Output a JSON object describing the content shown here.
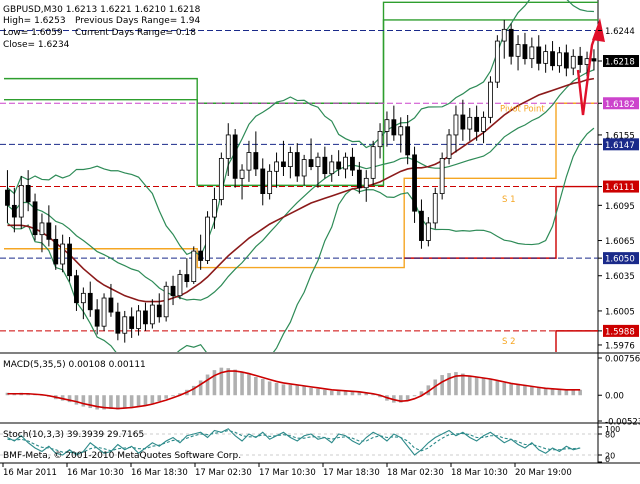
{
  "symbol_info": "GBPUSD,M30  1.6213 1.6221 1.6210 1.6218",
  "info_lines": [
    "High= 1.6253",
    "Low= 1.6059",
    "Close= 1.6234"
  ],
  "range_lines": [
    "Previous Days Range= 1.94",
    "Current Days Range= 0.18"
  ],
  "copyright": "BMF-Meta, © 2001-2010 MetaQuotes Software Corp.",
  "macd_label": "MACD(5,35,5) 0.00108 0.00111",
  "stoch_label": "Stoch(10,3,3) 39.3939 29.7165",
  "colors": {
    "candle": "#000000",
    "bollinger": "#2e8b57",
    "ma": "#8b1a1a",
    "pivot": "#f5a623",
    "resistance": "#2e9e2e",
    "support": "#cc0000",
    "macd_signal": "#cc0000",
    "macd_hist": "#b0b0b0",
    "stoch_main": "#2e8b8b",
    "stoch_signal": "#2e8b8b",
    "arrow": "#e0102a"
  },
  "chart_data": [
    {
      "type": "candlestick",
      "title": "GBPUSD,M30",
      "y_ticks": [
        "1.6244",
        "1.6218",
        "1.6182",
        "1.6155",
        "1.6147",
        "1.6111",
        "1.6095",
        "1.6065",
        "1.6050",
        "1.6035",
        "1.6005",
        "1.5988",
        "1.5976"
      ],
      "highlighted_levels": [
        {
          "label": "1.6244",
          "value": 1.6244,
          "color": "#ffffff",
          "bg": "#ffffff"
        },
        {
          "label": "1.6218",
          "value": 1.6218,
          "color": "#ffffff",
          "bg": "#000000"
        },
        {
          "label": "1.6182",
          "value": 1.6182,
          "color": "#ffffff",
          "bg": "#cc44cc"
        },
        {
          "label": "1.6147",
          "value": 1.6147,
          "color": "#ffffff",
          "bg": "#1a2a8a"
        },
        {
          "label": "1.6111",
          "value": 1.6111,
          "color": "#ffffff",
          "bg": "#cc0000"
        },
        {
          "label": "1.6050",
          "value": 1.605,
          "color": "#ffffff",
          "bg": "#1a2a8a"
        },
        {
          "label": "1.5988",
          "value": 1.5988,
          "color": "#ffffff",
          "bg": "#cc0000"
        }
      ],
      "level_labels": [
        "Pivot Point",
        "S 1",
        "S 2"
      ],
      "x_ticks": [
        "16 Mar 2011",
        "16 Mar 10:30",
        "16 Mar 18:30",
        "17 Mar 02:30",
        "17 Mar 10:30",
        "17 Mar 18:30",
        "18 Mar 02:30",
        "18 Mar 10:30",
        "20 Mar 19:00"
      ],
      "ylim": [
        1.597,
        1.627
      ],
      "candles": [
        [
          1.6108,
          1.6125,
          1.608,
          1.6095
        ],
        [
          1.6095,
          1.611,
          1.6072,
          1.6085
        ],
        [
          1.6085,
          1.612,
          1.6075,
          1.6112
        ],
        [
          1.6112,
          1.6125,
          1.609,
          1.6098
        ],
        [
          1.6098,
          1.6105,
          1.6065,
          1.607
        ],
        [
          1.607,
          1.6088,
          1.6055,
          1.608
        ],
        [
          1.608,
          1.6095,
          1.606,
          1.6066
        ],
        [
          1.6066,
          1.6078,
          1.604,
          1.6045
        ],
        [
          1.6045,
          1.607,
          1.6038,
          1.6062
        ],
        [
          1.6062,
          1.6068,
          1.603,
          1.6035
        ],
        [
          1.6035,
          1.604,
          1.6005,
          1.6012
        ],
        [
          1.6012,
          1.6025,
          1.5998,
          1.602
        ],
        [
          1.602,
          1.603,
          1.6,
          1.6006
        ],
        [
          1.6006,
          1.6015,
          1.5985,
          1.5992
        ],
        [
          1.5992,
          1.602,
          1.5988,
          1.6016
        ],
        [
          1.6016,
          1.6028,
          1.6,
          1.6004
        ],
        [
          1.6004,
          1.6012,
          1.598,
          1.5986
        ],
        [
          1.5986,
          1.6005,
          1.5978,
          1.6
        ],
        [
          1.6,
          1.6008,
          1.5982,
          1.599
        ],
        [
          1.599,
          1.601,
          1.5984,
          1.6005
        ],
        [
          1.6005,
          1.6012,
          1.5988,
          1.5994
        ],
        [
          1.5994,
          1.6015,
          1.599,
          1.601
        ],
        [
          1.601,
          1.602,
          1.5995,
          1.6
        ],
        [
          1.6,
          1.603,
          1.5996,
          1.6026
        ],
        [
          1.6026,
          1.6035,
          1.601,
          1.6018
        ],
        [
          1.6018,
          1.604,
          1.6015,
          1.6036
        ],
        [
          1.6036,
          1.605,
          1.6025,
          1.603
        ],
        [
          1.603,
          1.606,
          1.6028,
          1.6056
        ],
        [
          1.6056,
          1.607,
          1.604,
          1.6048
        ],
        [
          1.6048,
          1.609,
          1.6045,
          1.6085
        ],
        [
          1.6085,
          1.611,
          1.6075,
          1.61
        ],
        [
          1.61,
          1.614,
          1.6095,
          1.6135
        ],
        [
          1.6135,
          1.6165,
          1.612,
          1.6155
        ],
        [
          1.6155,
          1.616,
          1.611,
          1.6118
        ],
        [
          1.6118,
          1.613,
          1.61,
          1.6125
        ],
        [
          1.6125,
          1.615,
          1.6115,
          1.614
        ],
        [
          1.614,
          1.6158,
          1.612,
          1.6126
        ],
        [
          1.6126,
          1.6135,
          1.6095,
          1.6105
        ],
        [
          1.6105,
          1.613,
          1.61,
          1.6124
        ],
        [
          1.6124,
          1.614,
          1.611,
          1.6132
        ],
        [
          1.6132,
          1.615,
          1.612,
          1.6128
        ],
        [
          1.6128,
          1.6145,
          1.6118,
          1.614
        ],
        [
          1.614,
          1.6148,
          1.6115,
          1.612
        ],
        [
          1.612,
          1.6138,
          1.6112,
          1.6134
        ],
        [
          1.6134,
          1.6152,
          1.6125,
          1.6128
        ],
        [
          1.6128,
          1.614,
          1.611,
          1.6136
        ],
        [
          1.6136,
          1.6145,
          1.6118,
          1.6122
        ],
        [
          1.6122,
          1.6138,
          1.6115,
          1.6132
        ],
        [
          1.6132,
          1.6142,
          1.612,
          1.6126
        ],
        [
          1.6126,
          1.614,
          1.6118,
          1.6136
        ],
        [
          1.6136,
          1.6144,
          1.612,
          1.6125
        ],
        [
          1.6125,
          1.6132,
          1.6105,
          1.611
        ],
        [
          1.611,
          1.6125,
          1.6098,
          1.6118
        ],
        [
          1.6118,
          1.615,
          1.6112,
          1.6145
        ],
        [
          1.6145,
          1.6165,
          1.6135,
          1.6158
        ],
        [
          1.6158,
          1.6175,
          1.6145,
          1.6168
        ],
        [
          1.6168,
          1.618,
          1.615,
          1.6155
        ],
        [
          1.6155,
          1.617,
          1.614,
          1.6162
        ],
        [
          1.6162,
          1.6172,
          1.613,
          1.6138
        ],
        [
          1.6138,
          1.6145,
          1.608,
          1.609
        ],
        [
          1.609,
          1.61,
          1.6058,
          1.6065
        ],
        [
          1.6065,
          1.6085,
          1.606,
          1.608
        ],
        [
          1.608,
          1.611,
          1.6075,
          1.6105
        ],
        [
          1.6105,
          1.614,
          1.61,
          1.6135
        ],
        [
          1.6135,
          1.616,
          1.613,
          1.6155
        ],
        [
          1.6155,
          1.618,
          1.614,
          1.6172
        ],
        [
          1.6172,
          1.6185,
          1.615,
          1.616
        ],
        [
          1.616,
          1.6178,
          1.615,
          1.617
        ],
        [
          1.617,
          1.618,
          1.615,
          1.6158
        ],
        [
          1.6158,
          1.6175,
          1.6148,
          1.617
        ],
        [
          1.617,
          1.6205,
          1.6165,
          1.62
        ],
        [
          1.62,
          1.624,
          1.6195,
          1.6235
        ],
        [
          1.6235,
          1.6253,
          1.622,
          1.6245
        ],
        [
          1.6245,
          1.625,
          1.6215,
          1.6222
        ],
        [
          1.6222,
          1.624,
          1.621,
          1.6232
        ],
        [
          1.6232,
          1.6242,
          1.6215,
          1.622
        ],
        [
          1.622,
          1.6238,
          1.6212,
          1.623
        ],
        [
          1.623,
          1.624,
          1.621,
          1.6216
        ],
        [
          1.6216,
          1.6232,
          1.6208,
          1.6226
        ],
        [
          1.6226,
          1.6235,
          1.621,
          1.6214
        ],
        [
          1.6214,
          1.623,
          1.6208,
          1.6225
        ],
        [
          1.6225,
          1.6232,
          1.6205,
          1.6212
        ],
        [
          1.6212,
          1.6228,
          1.6206,
          1.6222
        ],
        [
          1.6222,
          1.623,
          1.6208,
          1.6215
        ],
        [
          1.6215,
          1.6226,
          1.6205,
          1.622
        ],
        [
          1.622,
          1.6228,
          1.621,
          1.6218
        ]
      ],
      "ma_values": [
        1.6078,
        1.6078,
        1.6078,
        1.6077,
        1.6075,
        1.6072,
        1.6068,
        1.6063,
        1.6058,
        1.6053,
        1.6047,
        1.6041,
        1.6036,
        1.6031,
        1.6027,
        1.6024,
        1.6021,
        1.6018,
        1.6016,
        1.6014,
        1.6013,
        1.6013,
        1.6013,
        1.6014,
        1.6016,
        1.6018,
        1.6021,
        1.6025,
        1.6029,
        1.6034,
        1.604,
        1.6046,
        1.6052,
        1.6057,
        1.6062,
        1.6067,
        1.6071,
        1.6075,
        1.6079,
        1.6082,
        1.6085,
        1.6088,
        1.6091,
        1.6094,
        1.6097,
        1.6099,
        1.6101,
        1.6103,
        1.6105,
        1.6107,
        1.6109,
        1.611,
        1.6111,
        1.6113,
        1.6115,
        1.6118,
        1.6121,
        1.6124,
        1.6126,
        1.6127,
        1.6127,
        1.6128,
        1.613,
        1.6133,
        1.6137,
        1.6141,
        1.6145,
        1.6149,
        1.6153,
        1.6157,
        1.6162,
        1.6167,
        1.6172,
        1.6176,
        1.618,
        1.6183,
        1.6186,
        1.6189,
        1.6191,
        1.6193,
        1.6195,
        1.6197,
        1.6199,
        1.62,
        1.6202,
        1.6203
      ],
      "pivot_segments": [
        {
          "kind": "R",
          "points": [
            [
              0,
              1.6203
            ],
            [
              28,
              1.6203
            ],
            [
              28,
              1.6182
            ],
            [
              55,
              1.6182
            ],
            [
              55,
              1.6268
            ],
            [
              95,
              1.6268
            ]
          ]
        },
        {
          "kind": "R2",
          "points": [
            [
              0,
              1.6185
            ],
            [
              28,
              1.6185
            ],
            [
              28,
              1.6112
            ],
            [
              55,
              1.6112
            ],
            [
              55,
              1.6253
            ],
            [
              95,
              1.6253
            ]
          ]
        },
        {
          "kind": "P",
          "points": [
            [
              0,
              1.6058
            ],
            [
              28,
              1.6058
            ],
            [
              28,
              1.6042
            ],
            [
              58,
              1.6042
            ],
            [
              58,
              1.6118
            ],
            [
              80,
              1.6118
            ],
            [
              80,
              1.6182
            ],
            [
              95,
              1.6182
            ]
          ]
        },
        {
          "kind": "S1",
          "points": [
            [
              58,
              1.605
            ],
            [
              80,
              1.605
            ],
            [
              80,
              1.6111
            ],
            [
              95,
              1.6111
            ]
          ]
        },
        {
          "kind": "S2",
          "points": [
            [
              58,
              1.5965
            ],
            [
              80,
              1.5965
            ],
            [
              80,
              1.5988
            ],
            [
              95,
              1.5988
            ]
          ]
        }
      ]
    },
    {
      "type": "bar",
      "title": "MACD(5,35,5) 0.00108 0.00111",
      "y_ticks": [
        "0.00756",
        "0.00",
        "-0.00523"
      ],
      "ylim": [
        -0.00523,
        0.00756
      ],
      "hist": [
        0.0005,
        0.0004,
        0.0005,
        0.0004,
        0.0002,
        0.0,
        -0.0003,
        -0.0008,
        -0.0011,
        -0.0014,
        -0.0019,
        -0.0023,
        -0.0026,
        -0.0029,
        -0.0029,
        -0.0028,
        -0.0029,
        -0.0027,
        -0.0026,
        -0.0023,
        -0.002,
        -0.0017,
        -0.0012,
        -0.0007,
        -0.0002,
        0.0004,
        0.0011,
        0.0019,
        0.003,
        0.0042,
        0.0051,
        0.0056,
        0.0055,
        0.0052,
        0.0047,
        0.0043,
        0.0037,
        0.0033,
        0.0028,
        0.0025,
        0.0022,
        0.0021,
        0.002,
        0.0018,
        0.0015,
        0.0013,
        0.0011,
        0.0009,
        0.0009,
        0.0009,
        0.0008,
        0.0006,
        0.0004,
        0.0002,
        -0.0004,
        -0.0011,
        -0.0015,
        -0.0015,
        -0.001,
        -0.0002,
        0.0008,
        0.002,
        0.0032,
        0.0041,
        0.0045,
        0.0047,
        0.0044,
        0.004,
        0.0037,
        0.0035,
        0.0033,
        0.0029,
        0.0025,
        0.0023,
        0.0021,
        0.0019,
        0.0017,
        0.0015,
        0.0013,
        0.0012,
        0.0011,
        0.001,
        0.0011,
        0.0011
      ],
      "signal": [
        0.0003,
        0.0003,
        0.0003,
        0.0003,
        0.0002,
        0.0001,
        -0.0001,
        -0.0004,
        -0.0007,
        -0.001,
        -0.0013,
        -0.0017,
        -0.002,
        -0.0023,
        -0.0025,
        -0.0026,
        -0.0027,
        -0.0026,
        -0.0025,
        -0.0023,
        -0.0021,
        -0.0018,
        -0.0014,
        -0.001,
        -0.0005,
        0.0,
        0.0006,
        0.0013,
        0.0022,
        0.0031,
        0.004,
        0.0046,
        0.0049,
        0.0049,
        0.0047,
        0.0044,
        0.004,
        0.0036,
        0.0032,
        0.0028,
        0.0025,
        0.0023,
        0.0021,
        0.0019,
        0.0017,
        0.0015,
        0.0013,
        0.0011,
        0.001,
        0.0009,
        0.0008,
        0.0007,
        0.0005,
        0.0003,
        0.0,
        -0.0005,
        -0.0009,
        -0.0012,
        -0.0011,
        -0.0007,
        -0.0001,
        0.0008,
        0.0018,
        0.0027,
        0.0034,
        0.0039,
        0.004,
        0.0039,
        0.0037,
        0.0035,
        0.0033,
        0.003,
        0.0027,
        0.0024,
        0.0022,
        0.002,
        0.0018,
        0.0016,
        0.0014,
        0.0013,
        0.0012,
        0.0011,
        0.0011,
        0.0011
      ]
    },
    {
      "type": "line",
      "title": "Stoch(10,3,3) 39.3939 29.7165",
      "y_ticks": [
        "100",
        "80",
        "20",
        "0"
      ],
      "ylim": [
        0,
        100
      ],
      "main": [
        70,
        60,
        75,
        55,
        40,
        30,
        45,
        25,
        20,
        35,
        20,
        30,
        55,
        40,
        25,
        30,
        50,
        35,
        45,
        25,
        40,
        55,
        45,
        60,
        70,
        55,
        75,
        80,
        85,
        70,
        90,
        85,
        95,
        75,
        60,
        80,
        70,
        85,
        65,
        75,
        85,
        70,
        60,
        75,
        80,
        65,
        70,
        55,
        80,
        75,
        60,
        50,
        70,
        85,
        75,
        60,
        80,
        70,
        45,
        20,
        35,
        55,
        70,
        80,
        90,
        75,
        85,
        70,
        60,
        75,
        85,
        70,
        55,
        65,
        50,
        40,
        55,
        35,
        25,
        40,
        30,
        45,
        35,
        40
      ],
      "signal": [
        65,
        62,
        65,
        60,
        50,
        42,
        40,
        35,
        28,
        28,
        25,
        28,
        38,
        42,
        38,
        32,
        38,
        40,
        42,
        38,
        38,
        45,
        48,
        55,
        62,
        60,
        68,
        75,
        80,
        78,
        82,
        85,
        90,
        85,
        75,
        72,
        72,
        78,
        73,
        75,
        78,
        75,
        68,
        68,
        72,
        72,
        70,
        65,
        70,
        72,
        68,
        60,
        60,
        70,
        75,
        70,
        72,
        70,
        60,
        40,
        32,
        40,
        55,
        68,
        78,
        80,
        82,
        78,
        70,
        70,
        75,
        75,
        68,
        65,
        58,
        50,
        50,
        45,
        38,
        35,
        35,
        38,
        38,
        40
      ]
    }
  ]
}
